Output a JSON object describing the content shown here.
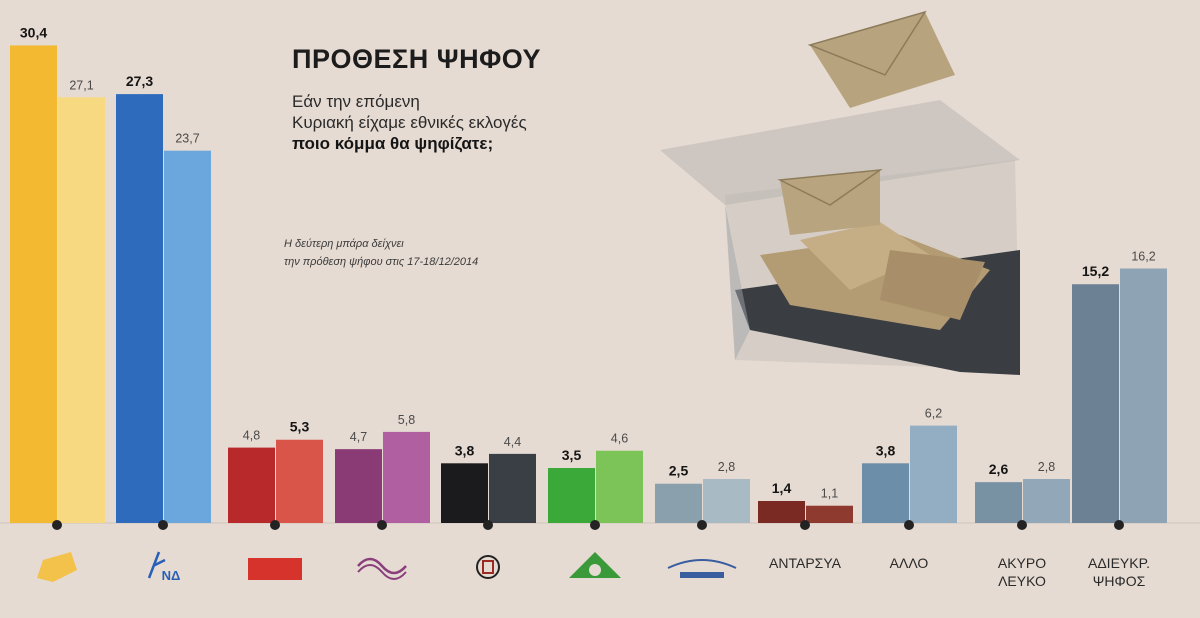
{
  "title": "ΠΡΟΘΕΣΗ ΨΗΦΟΥ",
  "question": {
    "line1": "Εάν την επόμενη",
    "line2": "Κυριακή είχαμε εθνικές εκλογές",
    "line3": "ποιο κόμμα θα ψηφίζατε;"
  },
  "note": {
    "line1": "Η δεύτερη μπάρα δείχνει",
    "line2": "την πρόθεση ψήφου στις 17-18/12/2014"
  },
  "chart_data": {
    "type": "bar",
    "ylim": [
      0,
      31
    ],
    "grid": false,
    "categories": [
      "ΣΥΡΙΖΑ",
      "ΝΔ",
      "ΚΚΕ",
      "ΠΟΤΑΜΙ",
      "ΧΑ",
      "ΠΑΣΟΚ",
      "ΑΝΕΞΑΡΤΗΤΟΙ ΕΛΛΗΝΕΣ",
      "ΑΝΤΑΡΣΥΑ",
      "ΑΛΛΟ",
      "ΑΚΥΡΟ ΛΕΥΚΟ",
      "ΑΔΙΕΥΚΡ. ΨΗΦΟΣ"
    ],
    "category_labels_shown": [
      "",
      "",
      "ΚΚΕ",
      "",
      "",
      "",
      "",
      "ΑΝΤΑΡΣΥΑ",
      "ΑΛΛΟ",
      "ΑΚΥΡΟ ΛΕΥΚΟ",
      "ΑΔΙΕΥΚΡ. ΨΗΦΟΣ"
    ],
    "icons": [
      "folder-icon",
      "nd-logo-icon",
      "kke-logo-icon",
      "potami-logo-icon",
      "xa-logo-icon",
      "pasok-sun-icon",
      "anel-logo-icon",
      "",
      "",
      "",
      ""
    ],
    "series": [
      {
        "values": [
          30.4,
          27.3,
          4.8,
          4.7,
          3.8,
          3.5,
          2.5,
          1.4,
          3.8,
          2.6,
          15.2
        ],
        "labels": [
          "30,4",
          "27,3",
          "4,8",
          "4,7",
          "3,8",
          "3,5",
          "2,5",
          "1,4",
          "3,8",
          "2,6",
          "15,2"
        ]
      },
      {
        "values": [
          27.1,
          23.7,
          5.3,
          5.8,
          4.4,
          4.6,
          2.8,
          1.1,
          6.2,
          2.8,
          16.2
        ],
        "labels": [
          "27,1",
          "23,7",
          "5,3",
          "5,8",
          "4,4",
          "4,6",
          "2,8",
          "1,1",
          "6,2",
          "2,8",
          "16,2"
        ]
      }
    ],
    "first_series_label_bold": [
      true,
      true,
      false,
      false,
      true,
      true,
      true,
      true,
      true,
      true,
      true
    ],
    "second_series_label_bold": [
      false,
      false,
      true,
      false,
      false,
      false,
      false,
      false,
      false,
      false,
      false
    ],
    "colors": {
      "first": [
        "#f2b931",
        "#2e6bbc",
        "#b8292c",
        "#8a3a74",
        "#1b1b1d",
        "#3ba83a",
        "#8aa0ad",
        "#7a2a22",
        "#6d8ea8",
        "#7891a3",
        "#6c8294"
      ],
      "second": [
        "#f7d981",
        "#6ba6dd",
        "#d9554a",
        "#b060a0",
        "#3a3f46",
        "#7cc457",
        "#a8bac4",
        "#8f3a2e",
        "#93aec3",
        "#92a8b8",
        "#8ea3b3"
      ]
    },
    "icon_colors": {
      "folder": "#f2c24a",
      "nd": "#2860b8",
      "kke": "#d7332d",
      "potami": "#8a3f7c",
      "xa": "#9b2a22",
      "pasok": "#3a9a3a",
      "anel": "#3a5da0"
    }
  }
}
